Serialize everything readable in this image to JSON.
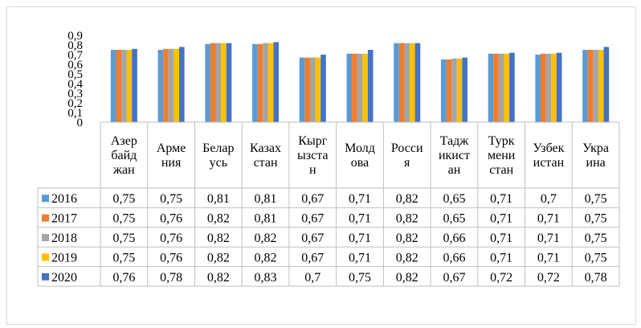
{
  "chart_data": {
    "type": "bar",
    "title": "",
    "xlabel": "",
    "ylabel": "",
    "ylim": [
      0,
      0.9
    ],
    "yticks": [
      "0",
      "0,1",
      "0,2",
      "0,3",
      "0,4",
      "0,5",
      "0,6",
      "0,7",
      "0,8",
      "0,9"
    ],
    "grid": false,
    "legend": "data-table-left",
    "categories": [
      [
        "Азер",
        "байд",
        "жан"
      ],
      [
        "Арме",
        "ния"
      ],
      [
        "Белар",
        "усь"
      ],
      [
        "Казах",
        "стан"
      ],
      [
        "Кырг",
        "ызста",
        "н"
      ],
      [
        "Молд",
        "ова"
      ],
      [
        "Росси",
        "я"
      ],
      [
        "Тадж",
        "икист",
        "ан"
      ],
      [
        "Турк",
        "мени",
        "стан"
      ],
      [
        "Узбек",
        "истан"
      ],
      [
        "Укра",
        "ина"
      ]
    ],
    "series": [
      {
        "name": "2016",
        "color": "#5b9bd5",
        "values": [
          0.75,
          0.75,
          0.81,
          0.81,
          0.67,
          0.71,
          0.82,
          0.65,
          0.71,
          0.7,
          0.75
        ],
        "labels": [
          "0,75",
          "0,75",
          "0,81",
          "0,81",
          "0,67",
          "0,71",
          "0,82",
          "0,65",
          "0,71",
          "0,7",
          "0,75"
        ]
      },
      {
        "name": "2017",
        "color": "#ed7d31",
        "values": [
          0.75,
          0.76,
          0.82,
          0.81,
          0.67,
          0.71,
          0.82,
          0.65,
          0.71,
          0.71,
          0.75
        ],
        "labels": [
          "0,75",
          "0,76",
          "0,82",
          "0,81",
          "0,67",
          "0,71",
          "0,82",
          "0,65",
          "0,71",
          "0,71",
          "0,75"
        ]
      },
      {
        "name": "2018",
        "color": "#a5a5a5",
        "values": [
          0.75,
          0.76,
          0.82,
          0.82,
          0.67,
          0.71,
          0.82,
          0.66,
          0.71,
          0.71,
          0.75
        ],
        "labels": [
          "0,75",
          "0,76",
          "0,82",
          "0,82",
          "0,67",
          "0,71",
          "0,82",
          "0,66",
          "0,71",
          "0,71",
          "0,75"
        ]
      },
      {
        "name": "2019",
        "color": "#ffc000",
        "values": [
          0.75,
          0.76,
          0.82,
          0.82,
          0.67,
          0.71,
          0.82,
          0.66,
          0.71,
          0.71,
          0.75
        ],
        "labels": [
          "0,75",
          "0,76",
          "0,82",
          "0,82",
          "0,67",
          "0,71",
          "0,82",
          "0,66",
          "0,71",
          "0,71",
          "0,75"
        ]
      },
      {
        "name": "2020",
        "color": "#4472c4",
        "values": [
          0.76,
          0.78,
          0.82,
          0.83,
          0.7,
          0.75,
          0.82,
          0.67,
          0.72,
          0.72,
          0.78
        ],
        "labels": [
          "0,76",
          "0,78",
          "0,82",
          "0,83",
          "0,7",
          "0,75",
          "0,82",
          "0,67",
          "0,72",
          "0,72",
          "0,78"
        ]
      }
    ]
  }
}
